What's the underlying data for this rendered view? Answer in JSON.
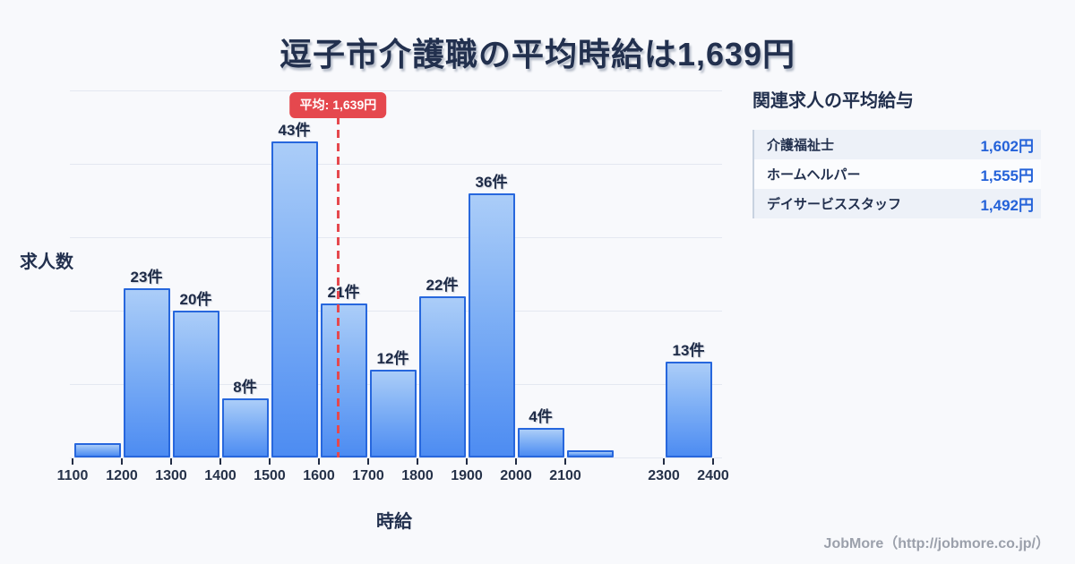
{
  "title": "逗子市介護職の平均時給は1,639円",
  "footer": "JobMore（http://jobmore.co.jp/）",
  "related_jobs": {
    "heading": "関連求人の平均給与",
    "rows": [
      {
        "label": "介護福祉士",
        "value": "1,602円"
      },
      {
        "label": "ホームヘルパー",
        "value": "1,555円"
      },
      {
        "label": "デイサービススタッフ",
        "value": "1,492円"
      }
    ]
  },
  "chart_data": {
    "type": "bar",
    "title": "逗子市介護職の平均時給は1,639円",
    "xlabel": "時給",
    "ylabel": "求人数",
    "ylim": [
      0,
      50
    ],
    "grid_step": 10,
    "grid": true,
    "x_ticks": [
      1100,
      1200,
      1300,
      1400,
      1500,
      1600,
      1700,
      1800,
      1900,
      2000,
      2100,
      2300,
      2400
    ],
    "bins": [
      {
        "start": 1100,
        "end": 1200,
        "count": 2,
        "label": ""
      },
      {
        "start": 1200,
        "end": 1300,
        "count": 23,
        "label": "23件"
      },
      {
        "start": 1300,
        "end": 1400,
        "count": 20,
        "label": "20件"
      },
      {
        "start": 1400,
        "end": 1500,
        "count": 8,
        "label": "8件"
      },
      {
        "start": 1500,
        "end": 1600,
        "count": 43,
        "label": "43件"
      },
      {
        "start": 1600,
        "end": 1700,
        "count": 21,
        "label": "21件"
      },
      {
        "start": 1700,
        "end": 1800,
        "count": 12,
        "label": "12件"
      },
      {
        "start": 1800,
        "end": 1900,
        "count": 22,
        "label": "22件"
      },
      {
        "start": 1900,
        "end": 2000,
        "count": 36,
        "label": "36件"
      },
      {
        "start": 2000,
        "end": 2100,
        "count": 4,
        "label": "4件"
      },
      {
        "start": 2100,
        "end": 2200,
        "count": 1,
        "label": ""
      },
      {
        "start": 2300,
        "end": 2400,
        "count": 13,
        "label": "13件"
      }
    ],
    "average": {
      "value": 1639,
      "label": "平均: 1,639円"
    },
    "colors": {
      "bar_fill_top": "#abcdf8",
      "bar_fill_bottom": "#4d8cf2",
      "bar_border": "#2767dd",
      "average_line": "#e5484e",
      "grid": "#e4e8f1",
      "text_dark": "#22304e",
      "value_blue": "#2462d9",
      "background": "#f8f9fc"
    }
  }
}
